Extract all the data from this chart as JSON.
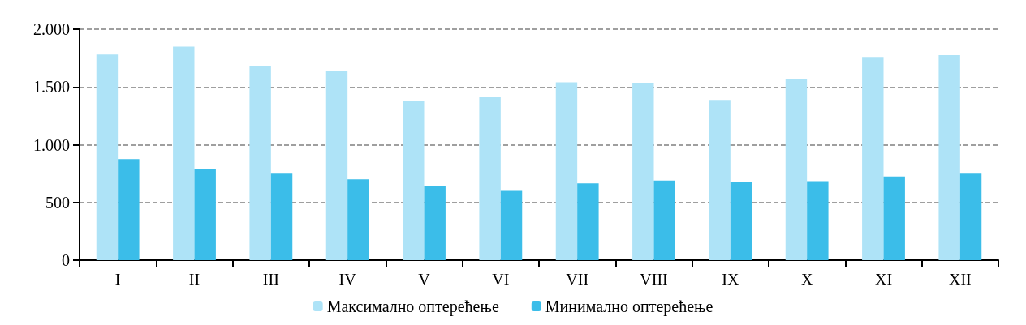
{
  "chart_data": {
    "type": "bar",
    "categories": [
      "I",
      "II",
      "III",
      "IV",
      "V",
      "VI",
      "VII",
      "VIII",
      "IX",
      "X",
      "XI",
      "XII"
    ],
    "series": [
      {
        "name": "Максимално оптерећење",
        "color": "#aee3f7",
        "values": [
          1780,
          1850,
          1680,
          1635,
          1375,
          1410,
          1540,
          1530,
          1380,
          1565,
          1760,
          1775
        ]
      },
      {
        "name": "Минимално оптерећење",
        "color": "#3bbde9",
        "values": [
          875,
          790,
          750,
          700,
          645,
          600,
          665,
          690,
          680,
          685,
          725,
          750
        ]
      }
    ],
    "ylim": [
      0,
      2000
    ],
    "yticks": [
      {
        "value": 0,
        "label": "0"
      },
      {
        "value": 500,
        "label": "500"
      },
      {
        "value": 1000,
        "label": "1.000"
      },
      {
        "value": 1500,
        "label": "1.500"
      },
      {
        "value": 2000,
        "label": "2.000"
      }
    ],
    "grid": "y",
    "legend": "bottom"
  }
}
